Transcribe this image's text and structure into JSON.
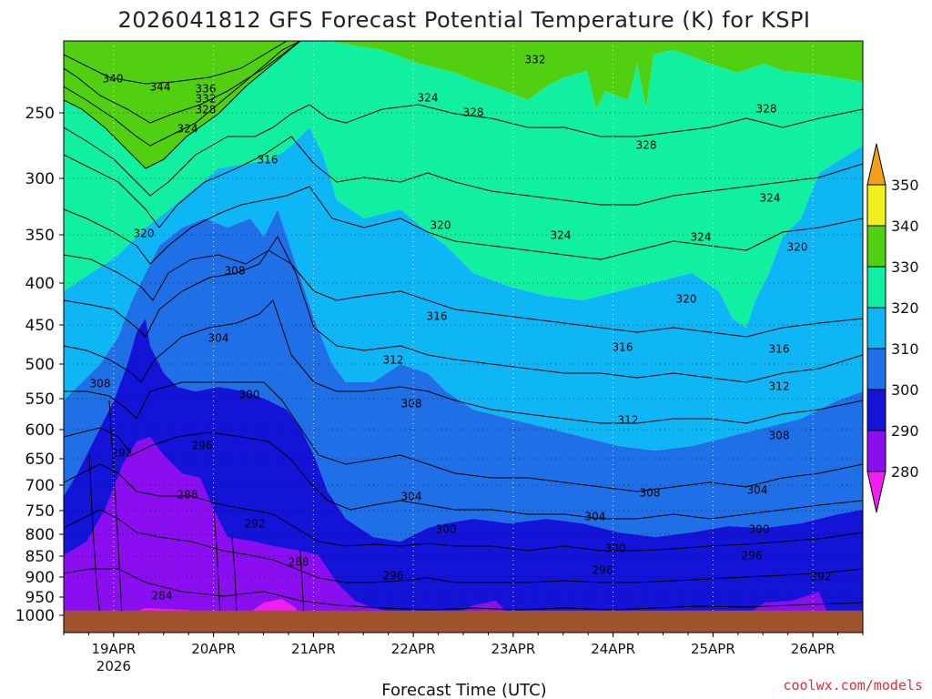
{
  "chart_data": {
    "type": "heatmap",
    "title": "2026041812 GFS Forecast Potential Temperature (K) for KSPI",
    "xlabel": "Forecast Time (UTC)",
    "ylabel": "Pressure (hPa)",
    "credit": "coolwx.com/models",
    "x_start_hour": -12,
    "x_end_hour": 180,
    "x_ticks": [
      {
        "hour": 0,
        "label": "19APR",
        "sublabel": "2026"
      },
      {
        "hour": 24,
        "label": "20APR",
        "sublabel": ""
      },
      {
        "hour": 48,
        "label": "21APR",
        "sublabel": ""
      },
      {
        "hour": 72,
        "label": "22APR",
        "sublabel": ""
      },
      {
        "hour": 96,
        "label": "23APR",
        "sublabel": ""
      },
      {
        "hour": 120,
        "label": "24APR",
        "sublabel": ""
      },
      {
        "hour": 144,
        "label": "25APR",
        "sublabel": ""
      },
      {
        "hour": 168,
        "label": "26APR",
        "sublabel": ""
      }
    ],
    "y_ticks": [
      {
        "p": 250,
        "label": "250"
      },
      {
        "p": 300,
        "label": "300"
      },
      {
        "p": 350,
        "label": "350"
      },
      {
        "p": 400,
        "label": "400"
      },
      {
        "p": 450,
        "label": "450"
      },
      {
        "p": 500,
        "label": "500"
      },
      {
        "p": 550,
        "label": "550"
      },
      {
        "p": 600,
        "label": "600"
      },
      {
        "p": 650,
        "label": "650"
      },
      {
        "p": 700,
        "label": "700"
      },
      {
        "p": 750,
        "label": "750"
      },
      {
        "p": 800,
        "label": "800"
      },
      {
        "p": 850,
        "label": "850"
      },
      {
        "p": 900,
        "label": "900"
      },
      {
        "p": 950,
        "label": "950"
      },
      {
        "p": 1000,
        "label": "1000"
      }
    ],
    "p_top": 200,
    "p_bottom": 1050,
    "surface_pressure": 987,
    "colorbar": {
      "levels": [
        280,
        290,
        300,
        310,
        320,
        330,
        340,
        350
      ],
      "colors": [
        "#8a0ef0",
        "#1414d8",
        "#1f6fe6",
        "#0fb6f5",
        "#10f0a0",
        "#50d010",
        "#f0f01e"
      ],
      "under_color": "#f01ef0",
      "over_color": "#f0a018"
    },
    "ground_color": "#a0522d",
    "series": [
      {
        "name": "280K",
        "pressure": [
          1000,
          1000,
          1000,
          1000,
          1000,
          1000,
          1000,
          1000,
          1000,
          1000,
          1000,
          1000,
          1000,
          1000,
          1000,
          1000,
          1000,
          1000,
          1000,
          1000,
          1000,
          1000,
          1000,
          1000,
          1000,
          1000,
          1000,
          1000,
          1000,
          1000,
          1000,
          1000,
          1000,
          1000,
          1000,
          1000,
          1000,
          1000,
          1000,
          1000,
          1000,
          1000,
          1000,
          1000,
          1000,
          1000,
          1000,
          1000,
          1000,
          1000,
          1000,
          1000,
          1000,
          1000,
          1000,
          1000,
          1000,
          1000,
          1000,
          1000,
          1000,
          1000,
          1000,
          1000,
          1000,
          1000,
          1000
        ]
      },
      {
        "name": "284K",
        "pressure": [
          1000,
          1000,
          1000,
          1000,
          1000,
          1000,
          1000,
          1000,
          1000,
          1000,
          1000,
          1000,
          1000,
          1000,
          1000,
          1000,
          1000,
          1000,
          1000,
          1000,
          1000,
          1000,
          1000,
          1000,
          1000,
          1000,
          1000,
          1000,
          1000,
          1000,
          1000,
          1000,
          1000,
          1000,
          1000,
          1000,
          1000,
          1000,
          1000,
          1000,
          1000,
          1000,
          1000,
          1000,
          1000,
          1000,
          1000,
          1000,
          1000,
          1000,
          1000,
          1000,
          1000,
          1000,
          1000,
          1000,
          1000,
          1000,
          1000,
          1000,
          1000,
          1000,
          1000,
          1000,
          1000,
          1000,
          1000
        ]
      },
      {
        "name": "290K",
        "pressure": [
          1000,
          1000,
          1000,
          1000,
          1000,
          1000,
          1000,
          1000,
          1000,
          1000,
          1000,
          1000,
          1000,
          1000,
          1000,
          1000,
          1000,
          1000,
          1000,
          1000,
          1000,
          1000,
          1000,
          1000,
          1000,
          1000,
          1000,
          1000,
          1000,
          1000,
          1000,
          1000,
          1000,
          1000,
          1000,
          1000,
          1000,
          1000,
          1000,
          1000,
          1000,
          1000,
          1000,
          1000,
          1000,
          1000,
          1000,
          1000,
          1000,
          1000,
          1000,
          1000,
          1000,
          1000,
          1000,
          1000,
          1000,
          1000,
          1000,
          1000,
          1000,
          1000,
          1000,
          1000,
          1000,
          1000,
          1000
        ]
      },
      {
        "name": "292K",
        "pressure": [
          1000,
          1000,
          1000,
          1000,
          1000,
          1000,
          1000,
          1000,
          1000,
          1000,
          1000,
          1000,
          1000,
          1000,
          1000,
          1000,
          1000,
          1000,
          1000,
          1000,
          1000,
          1000,
          1000,
          1000,
          1000,
          1000,
          1000,
          1000,
          1000,
          1000,
          1000,
          1000,
          1000,
          1000,
          1000,
          1000,
          1000,
          1000,
          1000,
          1000,
          1000,
          1000,
          1000,
          1000,
          1000,
          1000,
          1000,
          1000,
          1000,
          1000,
          1000,
          1000,
          1000,
          1000,
          1000,
          1000,
          1000,
          1000,
          1000,
          1000,
          1000,
          1000,
          1000,
          1000,
          1000,
          1000,
          1000
        ]
      },
      {
        "name": "296K",
        "pressure": [
          1000,
          1000,
          1000,
          1000,
          1000,
          1000,
          1000,
          1000,
          1000,
          1000,
          1000,
          1000,
          1000,
          1000,
          1000,
          1000,
          1000,
          1000,
          1000,
          1000,
          1000,
          1000,
          1000,
          1000,
          1000,
          1000,
          1000,
          1000,
          1000,
          1000,
          1000,
          1000,
          1000,
          1000,
          1000,
          1000,
          1000,
          1000,
          1000,
          1000,
          1000,
          1000,
          1000,
          1000,
          1000,
          1000,
          1000,
          1000,
          1000,
          1000,
          1000,
          1000,
          1000,
          1000,
          1000,
          1000,
          1000,
          1000,
          1000,
          1000,
          1000,
          1000,
          1000,
          1000,
          1000,
          1000,
          1000
        ]
      },
      {
        "name": "300K",
        "pressure": [
          1000,
          1000,
          1000,
          1000,
          1000,
          1000,
          1000,
          1000,
          1000,
          1000,
          1000,
          1000,
          1000,
          1000,
          1000,
          1000,
          1000,
          1000,
          1000,
          1000,
          1000,
          1000,
          1000,
          1000,
          1000,
          1000,
          1000,
          1000,
          1000,
          1000,
          1000,
          1000,
          1000,
          1000,
          1000,
          1000,
          1000,
          1000,
          1000,
          1000,
          1000,
          1000,
          1000,
          1000,
          1000,
          1000,
          1000,
          1000,
          1000,
          1000,
          1000,
          1000,
          1000,
          1000,
          1000,
          1000,
          1000,
          1000,
          1000,
          1000,
          1000,
          1000,
          1000,
          1000,
          1000,
          1000,
          1000
        ]
      }
    ]
  }
}
